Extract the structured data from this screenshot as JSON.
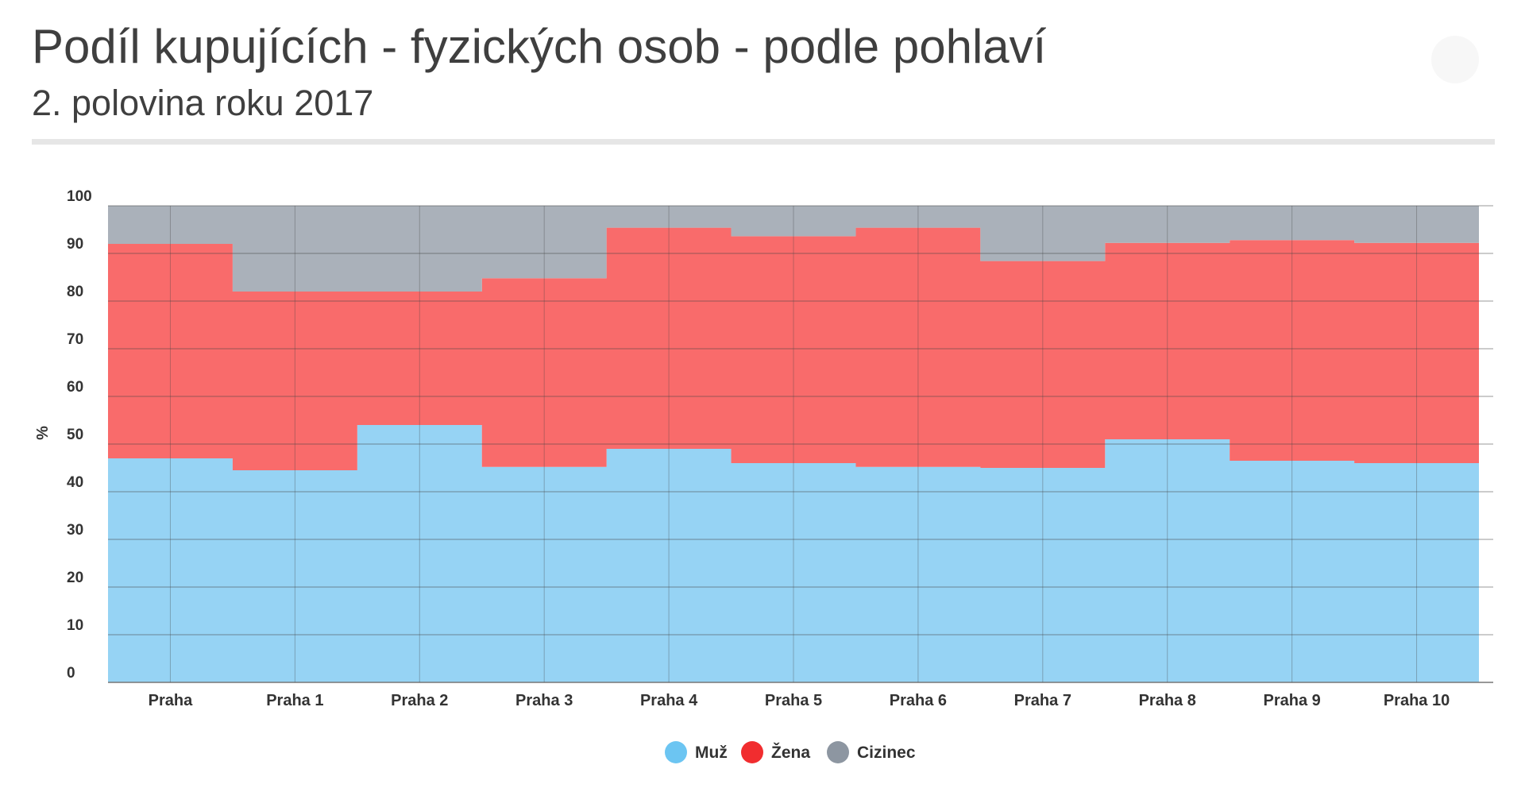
{
  "header": {
    "title": "Podíl kupujících - fyzických osob - podle pohlaví",
    "subtitle": "2. polovina roku 2017"
  },
  "chart_data": {
    "type": "area",
    "stacked": true,
    "step": true,
    "ylabel": "%",
    "ylim": [
      0,
      100
    ],
    "yticks": [
      0,
      10,
      20,
      30,
      40,
      50,
      60,
      70,
      80,
      90,
      100
    ],
    "grid": true,
    "legend_position": "bottom-center",
    "categories": [
      "Praha",
      "Praha 1",
      "Praha 2",
      "Praha 3",
      "Praha 4",
      "Praha 5",
      "Praha 6",
      "Praha 7",
      "Praha 8",
      "Praha 9",
      "Praha 10"
    ],
    "series": [
      {
        "name": "Muž",
        "color": "#96d3f4",
        "legend_color": "#6cc5f2",
        "values": [
          47.0,
          44.5,
          54.0,
          45.2,
          49.0,
          46.0,
          45.2,
          45.0,
          51.0,
          46.5,
          46.0
        ]
      },
      {
        "name": "Žena",
        "color": "#f96b6b",
        "legend_color": "#f12d2f",
        "values": [
          45.0,
          37.5,
          28.0,
          39.6,
          46.4,
          47.6,
          50.2,
          43.4,
          41.2,
          46.3,
          46.2
        ]
      },
      {
        "name": "Cizinec",
        "color": "#aab1ba",
        "legend_color": "#8d96a1",
        "values": [
          8.0,
          18.0,
          18.0,
          15.2,
          4.6,
          6.4,
          4.6,
          11.6,
          7.8,
          7.2,
          7.8
        ]
      }
    ]
  }
}
